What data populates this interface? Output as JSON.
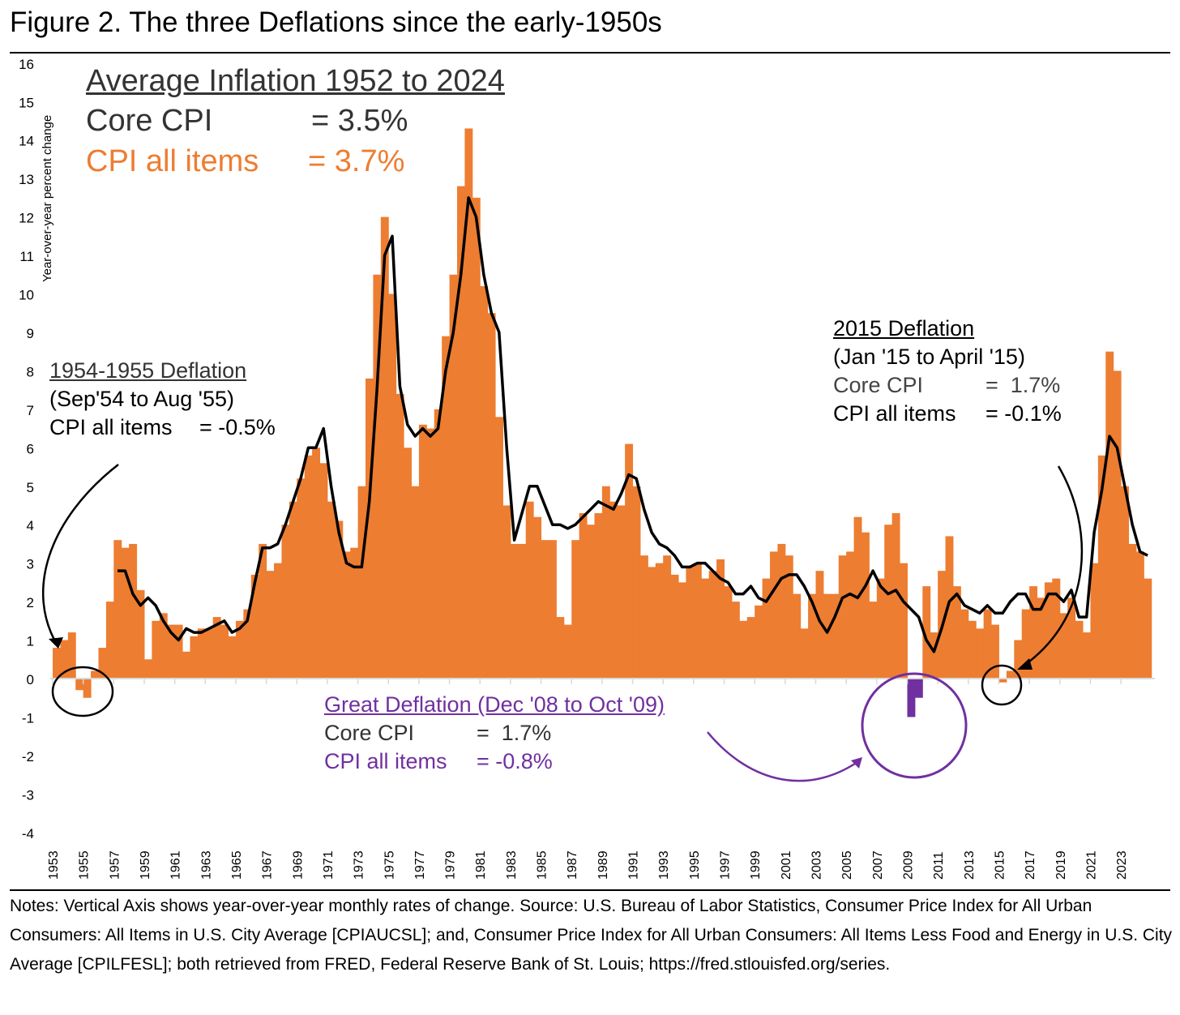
{
  "title": "Figure 2. The three Deflations since the early-1950s",
  "average_box": {
    "heading": "Average Inflation 1952 to 2024",
    "core_label": "Core CPI",
    "core_value": "= 3.5%",
    "all_label": "CPI all items",
    "all_value": "= 3.7%"
  },
  "deflation_1954": {
    "heading": "1954-1955 Deflation",
    "period": "(Sep'54 to Aug '55)",
    "all_label": "CPI all items",
    "all_value": "= -0.5%"
  },
  "deflation_2015": {
    "heading": "2015 Deflation",
    "period": "(Jan '15 to April '15)",
    "core_label": "Core CPI",
    "core_value": "=  1.7%",
    "all_label": "CPI all items",
    "all_value": "= -0.1%"
  },
  "great_deflation": {
    "heading": "Great Deflation (Dec '08 to Oct '09)",
    "core_label": "Core CPI",
    "core_value": "=  1.7%",
    "all_label": "CPI all items",
    "all_value": "= -0.8%"
  },
  "notes": "Notes: Vertical Axis shows year-over-year monthly rates of change. Source: U.S. Bureau of Labor Statistics, Consumer Price Index for All Urban Consumers: All Items in U.S. City Average [CPIAUCSL]; and, Consumer Price Index for All Urban Consumers: All Items Less Food and Energy in U.S. City Average [CPILFESL]; both retrieved from FRED, Federal Reserve Bank of St. Louis; https://fred.stlouisfed.org/series.",
  "colors": {
    "cpi": "#ED7D31",
    "core": "#000000",
    "great": "#7030A0"
  },
  "chart_data": {
    "type": "bar",
    "ylabel": "Year-over-year  percent change",
    "ylim": [
      -4,
      16
    ],
    "yticks": [
      "-4",
      "-3",
      "-2",
      "-1",
      "0",
      "1",
      "2",
      "3",
      "4",
      "5",
      "6",
      "7",
      "8",
      "9",
      "10",
      "11",
      "12",
      "13",
      "14",
      "15",
      "16"
    ],
    "xticks": [
      "1953",
      "1955",
      "1957",
      "1959",
      "1961",
      "1963",
      "1965",
      "1967",
      "1969",
      "1971",
      "1973",
      "1975",
      "1977",
      "1979",
      "1981",
      "1983",
      "1985",
      "1987",
      "1989",
      "1991",
      "1993",
      "1995",
      "1997",
      "1999",
      "2001",
      "2003",
      "2005",
      "2007",
      "2009",
      "2011",
      "2013",
      "2015",
      "2017",
      "2019",
      "2021",
      "2023"
    ],
    "x_start": 1953,
    "x_step": 0.5,
    "series": [
      {
        "name": "CPI all items",
        "type": "bar",
        "values": [
          0.8,
          1.0,
          1.2,
          -0.3,
          -0.5,
          0.2,
          0.8,
          2.0,
          3.6,
          3.4,
          3.5,
          2.3,
          0.5,
          1.5,
          1.7,
          1.4,
          1.4,
          0.7,
          1.1,
          1.3,
          1.3,
          1.6,
          1.4,
          1.1,
          1.5,
          1.8,
          2.7,
          3.5,
          2.8,
          3.0,
          4.0,
          4.6,
          5.2,
          5.8,
          6.0,
          5.6,
          4.6,
          4.1,
          3.3,
          3.4,
          5.0,
          7.8,
          10.5,
          12.0,
          10.0,
          7.4,
          6.0,
          5.0,
          6.6,
          6.5,
          7.0,
          8.9,
          10.5,
          12.8,
          14.3,
          12.5,
          10.2,
          9.5,
          6.8,
          4.5,
          3.5,
          3.5,
          4.6,
          4.2,
          3.6,
          3.6,
          1.6,
          1.4,
          3.6,
          4.3,
          4.0,
          4.3,
          5.0,
          4.6,
          4.5,
          6.1,
          5.0,
          3.2,
          2.9,
          3.0,
          3.2,
          2.7,
          2.5,
          2.9,
          3.0,
          2.6,
          2.8,
          3.1,
          2.4,
          2.0,
          1.5,
          1.6,
          1.9,
          2.6,
          3.3,
          3.5,
          3.2,
          2.2,
          1.3,
          2.2,
          2.8,
          2.2,
          2.2,
          3.2,
          3.3,
          4.2,
          3.8,
          2.0,
          2.6,
          4.0,
          4.3,
          3.0,
          -1.0,
          -0.5,
          2.4,
          1.2,
          2.8,
          3.7,
          2.4,
          1.8,
          1.5,
          1.3,
          1.8,
          1.4,
          -0.1,
          0.2,
          1.0,
          1.8,
          2.4,
          2.1,
          2.5,
          2.6,
          1.7,
          2.1,
          1.5,
          1.2,
          3.0,
          5.8,
          8.5,
          8.0,
          5.0,
          3.5,
          3.3,
          2.6
        ]
      },
      {
        "name": "Core CPI",
        "type": "line",
        "values": [
          null,
          null,
          null,
          null,
          null,
          null,
          null,
          null,
          2.8,
          2.8,
          2.2,
          1.9,
          2.1,
          1.9,
          1.5,
          1.2,
          1.0,
          1.3,
          1.2,
          1.2,
          1.3,
          1.4,
          1.5,
          1.2,
          1.3,
          1.5,
          2.5,
          3.4,
          3.4,
          3.5,
          4.0,
          4.6,
          5.2,
          6.0,
          6.0,
          6.5,
          5.0,
          3.8,
          3.0,
          2.9,
          2.9,
          4.6,
          7.5,
          11.0,
          11.5,
          7.6,
          6.6,
          6.3,
          6.5,
          6.3,
          6.5,
          8.0,
          9.0,
          10.5,
          12.5,
          12.0,
          10.5,
          9.5,
          9.0,
          6.0,
          3.6,
          4.3,
          5.0,
          5.0,
          4.5,
          4.0,
          4.0,
          3.9,
          4.0,
          4.2,
          4.4,
          4.6,
          4.5,
          4.4,
          4.8,
          5.3,
          5.2,
          4.4,
          3.8,
          3.5,
          3.4,
          3.2,
          2.9,
          2.9,
          3.0,
          3.0,
          2.8,
          2.6,
          2.5,
          2.2,
          2.2,
          2.4,
          2.1,
          2.0,
          2.3,
          2.6,
          2.7,
          2.7,
          2.4,
          2.0,
          1.5,
          1.2,
          1.6,
          2.1,
          2.2,
          2.1,
          2.4,
          2.8,
          2.4,
          2.2,
          2.3,
          2.0,
          1.8,
          1.6,
          1.0,
          0.7,
          1.3,
          2.0,
          2.2,
          1.9,
          1.8,
          1.7,
          1.9,
          1.7,
          1.7,
          2.0,
          2.2,
          2.2,
          1.8,
          1.8,
          2.2,
          2.2,
          2.0,
          2.3,
          1.6,
          1.6,
          3.8,
          4.9,
          6.3,
          6.0,
          5.0,
          4.0,
          3.3,
          3.2
        ]
      }
    ]
  }
}
